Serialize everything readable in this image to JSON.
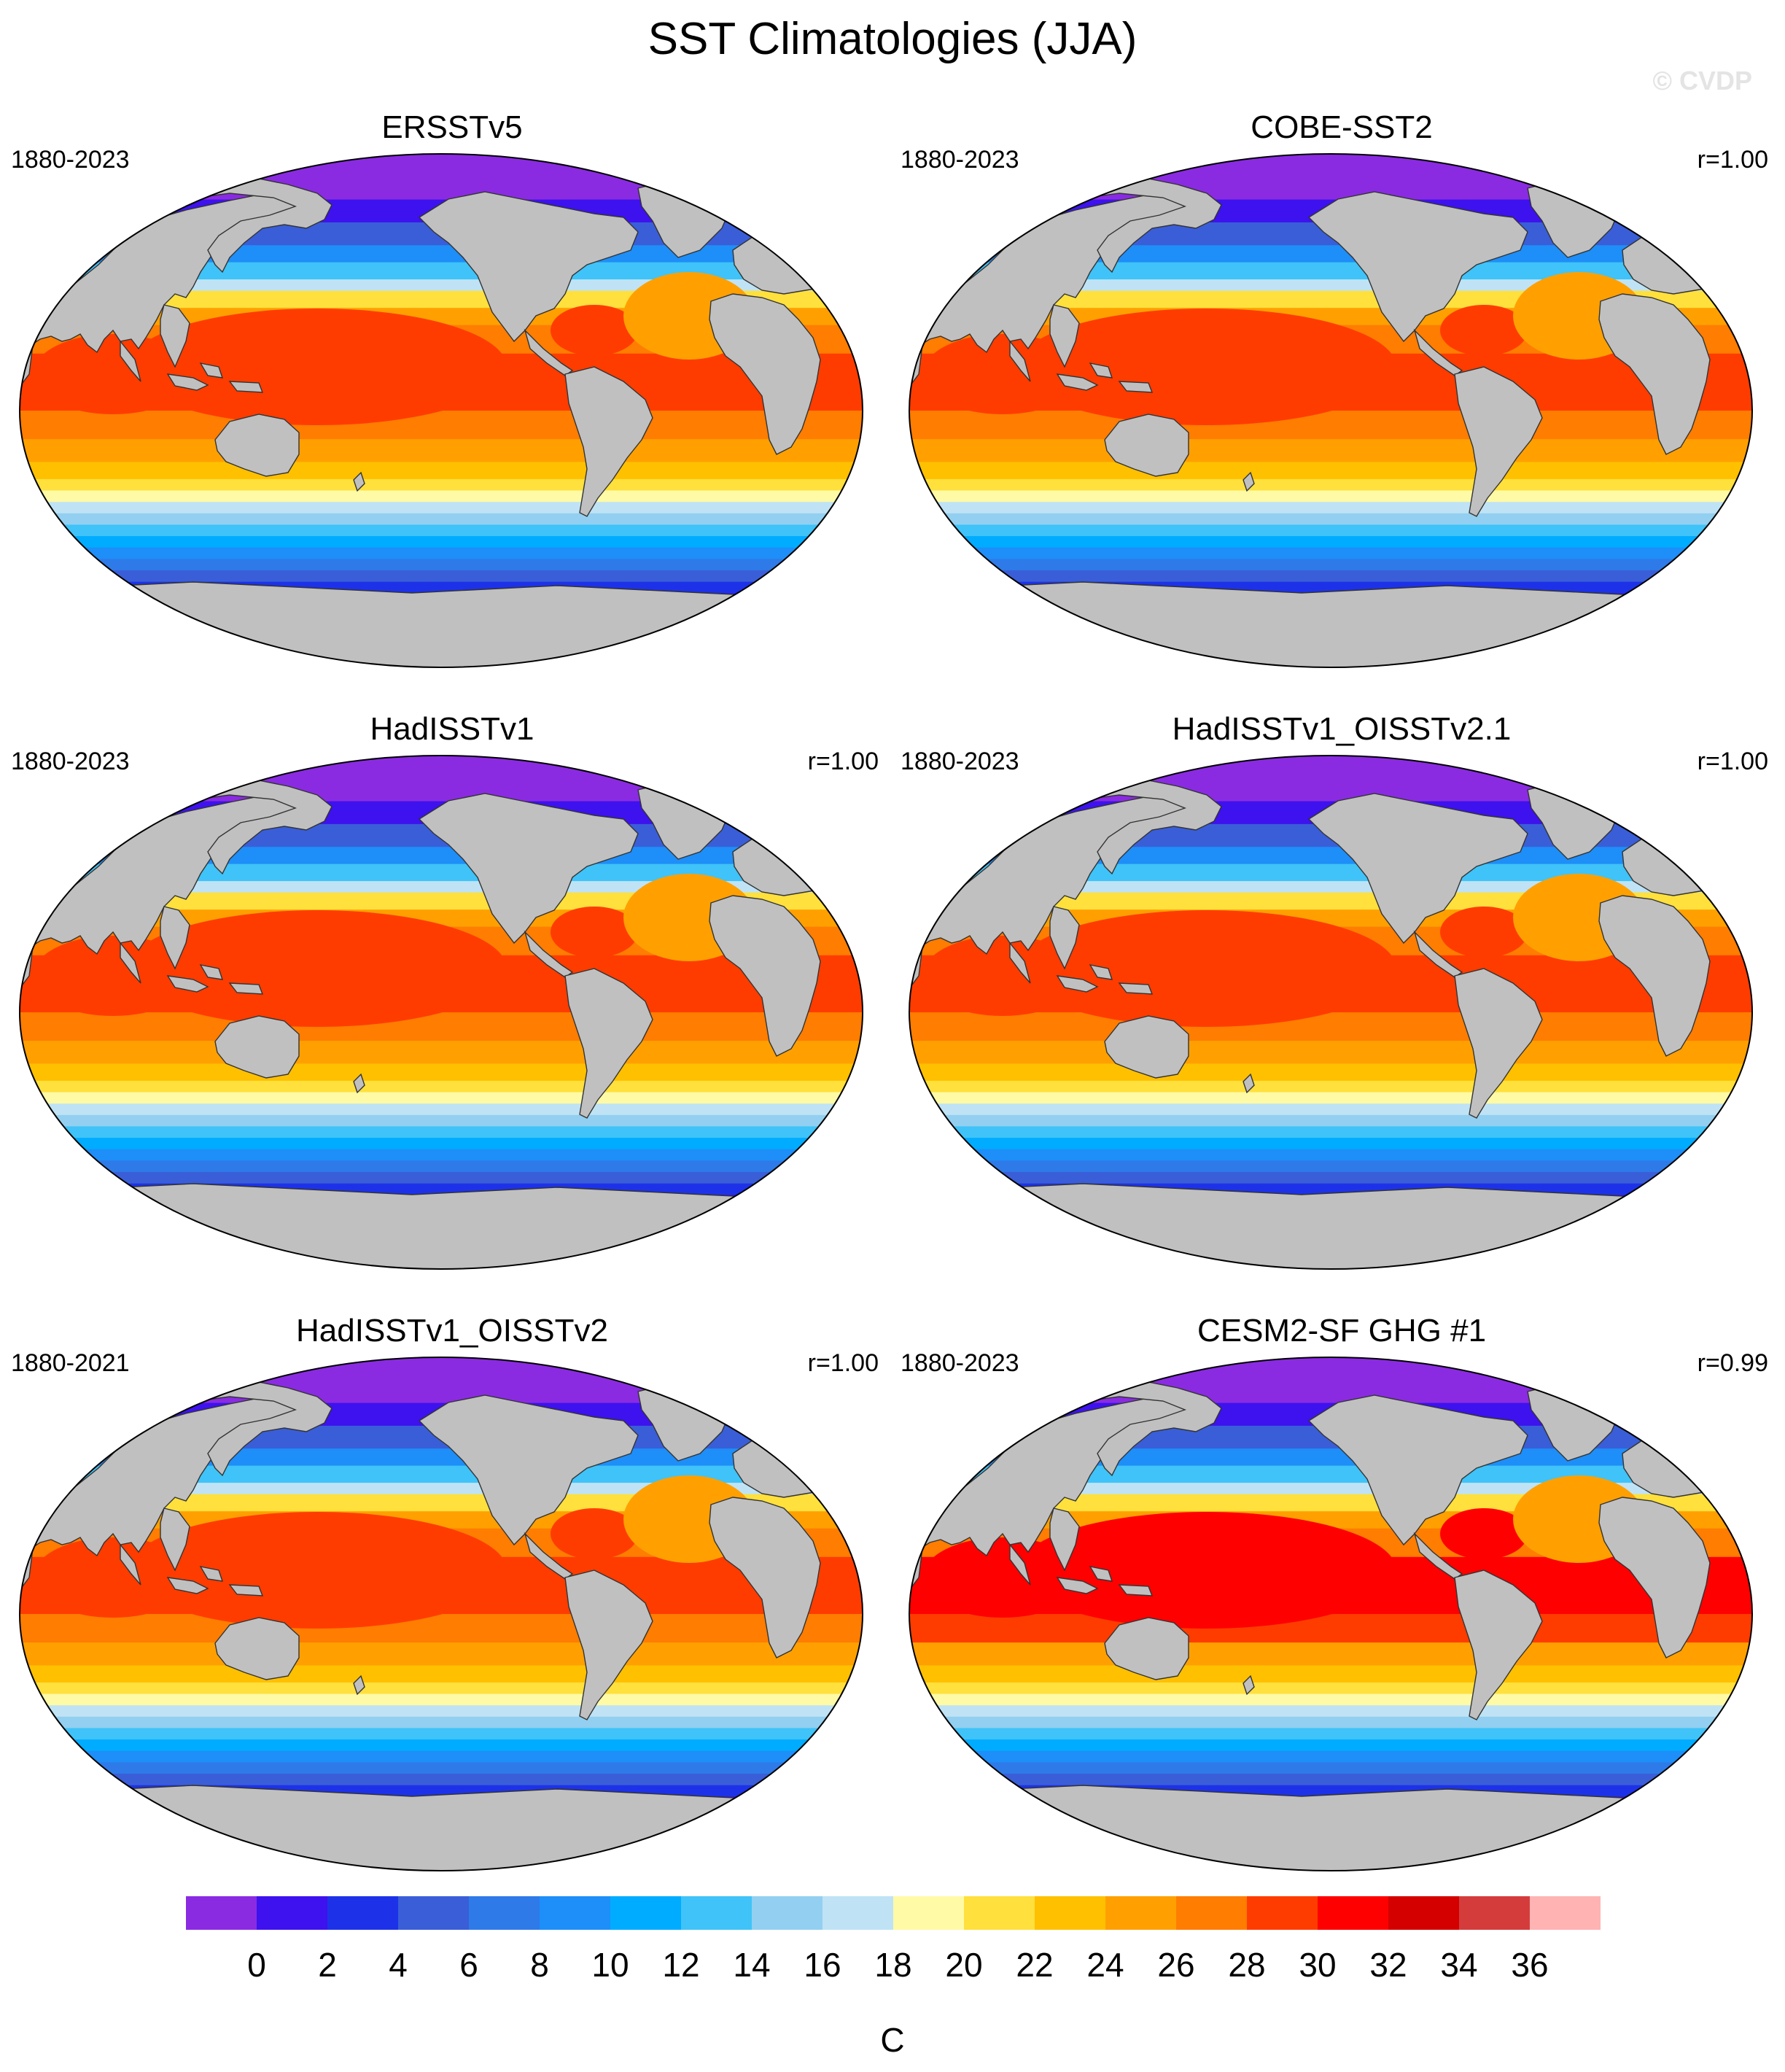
{
  "figure_title": "SST Climatologies (JJA)",
  "watermark": "© CVDP",
  "chart_data": {
    "type": "heatmap",
    "projection": "Robinson (global map)",
    "variable": "Sea surface temperature climatology, JJA",
    "colorbar": {
      "unit": "C",
      "tick_labels": [
        "0",
        "2",
        "4",
        "6",
        "8",
        "10",
        "12",
        "14",
        "16",
        "18",
        "20",
        "22",
        "24",
        "26",
        "28",
        "30",
        "32",
        "34",
        "36"
      ],
      "levels": [
        0,
        2,
        4,
        6,
        8,
        10,
        12,
        14,
        16,
        18,
        20,
        22,
        24,
        26,
        28,
        30,
        32,
        34,
        36
      ],
      "colors": [
        "#8a2be2",
        "#3d12ee",
        "#1d32e8",
        "#3a5ed8",
        "#2e7ae8",
        "#1e8ef8",
        "#00acff",
        "#3fc3f8",
        "#93cff0",
        "#bfe3f5",
        "#fffaa6",
        "#ffe03c",
        "#ffc000",
        "#ffa000",
        "#ff7d00",
        "#ff3c00",
        "#ff0000",
        "#d40000",
        "#d43c3c",
        "#ffb3b3"
      ]
    },
    "panels": [
      {
        "title": "ERSSTv5",
        "years": "1880-2023",
        "corr": ""
      },
      {
        "title": "COBE-SST2",
        "years": "1880-2023",
        "corr": "r=1.00"
      },
      {
        "title": "HadISSTv1",
        "years": "1880-2023",
        "corr": "r=1.00"
      },
      {
        "title": "HadISSTv1_OISSTv2.1",
        "years": "1880-2023",
        "corr": "r=1.00"
      },
      {
        "title": "HadISSTv1_OISSTv2",
        "years": "1880-2021",
        "corr": "r=1.00"
      },
      {
        "title": "CESM2-SF GHG #1",
        "years": "1880-2023",
        "corr": "r=0.99"
      }
    ],
    "land_color": "#c0c0c0",
    "missing_color": "#ffffff"
  }
}
